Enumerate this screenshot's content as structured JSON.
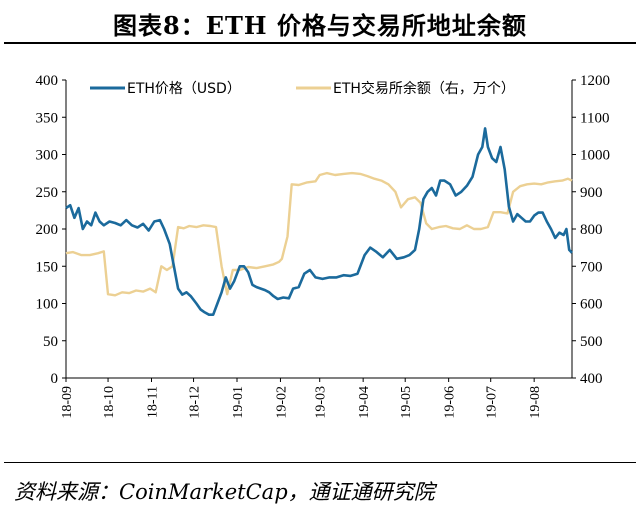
{
  "title": "图表8：ETH 价格与交易所地址余额",
  "source": "资料来源：CoinMarketCap，通证通研究院",
  "colors": {
    "price": "#1b6a9c",
    "balance": "#ecd093"
  },
  "chart_data": {
    "type": "line",
    "title": "图表8：ETH 价格与交易所地址余额",
    "x_ticks": [
      "18-09",
      "18-10",
      "18-11",
      "18-12",
      "19-01",
      "19-02",
      "19-03",
      "19-04",
      "19-05",
      "19-06",
      "19-07",
      "19-08"
    ],
    "x_range": [
      "2018-09-01",
      "2019-08-28"
    ],
    "y_left": {
      "ticks": [
        0,
        50,
        100,
        150,
        200,
        250,
        300,
        350,
        400
      ],
      "lim": [
        0,
        400
      ]
    },
    "y_right": {
      "ticks": [
        400,
        500,
        600,
        700,
        800,
        900,
        1000,
        1100,
        1200
      ],
      "lim": [
        400,
        1200
      ]
    },
    "legend_position": "top",
    "grid": false,
    "series": [
      {
        "name": "ETH价格（USD）",
        "axis": "left",
        "color": "#1b6a9c",
        "points": [
          [
            "2018-09-01",
            228
          ],
          [
            "2018-09-04",
            232
          ],
          [
            "2018-09-07",
            215
          ],
          [
            "2018-09-10",
            228
          ],
          [
            "2018-09-13",
            200
          ],
          [
            "2018-09-16",
            210
          ],
          [
            "2018-09-19",
            205
          ],
          [
            "2018-09-22",
            222
          ],
          [
            "2018-09-25",
            210
          ],
          [
            "2018-09-28",
            205
          ],
          [
            "2018-10-02",
            210
          ],
          [
            "2018-10-06",
            208
          ],
          [
            "2018-10-10",
            205
          ],
          [
            "2018-10-14",
            212
          ],
          [
            "2018-10-18",
            205
          ],
          [
            "2018-10-22",
            202
          ],
          [
            "2018-10-26",
            207
          ],
          [
            "2018-10-30",
            198
          ],
          [
            "2018-11-03",
            210
          ],
          [
            "2018-11-07",
            212
          ],
          [
            "2018-11-10",
            200
          ],
          [
            "2018-11-14",
            180
          ],
          [
            "2018-11-17",
            150
          ],
          [
            "2018-11-20",
            120
          ],
          [
            "2018-11-23",
            112
          ],
          [
            "2018-11-26",
            115
          ],
          [
            "2018-11-29",
            110
          ],
          [
            "2018-12-03",
            100
          ],
          [
            "2018-12-06",
            92
          ],
          [
            "2018-12-09",
            88
          ],
          [
            "2018-12-12",
            85
          ],
          [
            "2018-12-15",
            85
          ],
          [
            "2018-12-18",
            100
          ],
          [
            "2018-12-21",
            115
          ],
          [
            "2018-12-24",
            135
          ],
          [
            "2018-12-27",
            120
          ],
          [
            "2018-12-30",
            130
          ],
          [
            "2019-01-03",
            150
          ],
          [
            "2019-01-06",
            150
          ],
          [
            "2019-01-09",
            142
          ],
          [
            "2019-01-12",
            125
          ],
          [
            "2019-01-15",
            122
          ],
          [
            "2019-01-18",
            120
          ],
          [
            "2019-01-21",
            118
          ],
          [
            "2019-01-24",
            115
          ],
          [
            "2019-01-27",
            110
          ],
          [
            "2019-01-30",
            106
          ],
          [
            "2019-02-03",
            108
          ],
          [
            "2019-02-07",
            107
          ],
          [
            "2019-02-10",
            120
          ],
          [
            "2019-02-14",
            122
          ],
          [
            "2019-02-18",
            140
          ],
          [
            "2019-02-22",
            145
          ],
          [
            "2019-02-26",
            135
          ],
          [
            "2019-03-03",
            133
          ],
          [
            "2019-03-08",
            135
          ],
          [
            "2019-03-13",
            135
          ],
          [
            "2019-03-18",
            138
          ],
          [
            "2019-03-23",
            137
          ],
          [
            "2019-03-28",
            140
          ],
          [
            "2019-04-02",
            165
          ],
          [
            "2019-04-06",
            175
          ],
          [
            "2019-04-10",
            170
          ],
          [
            "2019-04-15",
            162
          ],
          [
            "2019-04-20",
            172
          ],
          [
            "2019-04-25",
            160
          ],
          [
            "2019-04-30",
            162
          ],
          [
            "2019-05-04",
            165
          ],
          [
            "2019-05-08",
            172
          ],
          [
            "2019-05-11",
            200
          ],
          [
            "2019-05-14",
            240
          ],
          [
            "2019-05-17",
            250
          ],
          [
            "2019-05-20",
            255
          ],
          [
            "2019-05-23",
            245
          ],
          [
            "2019-05-26",
            265
          ],
          [
            "2019-05-29",
            265
          ],
          [
            "2019-06-02",
            260
          ],
          [
            "2019-06-06",
            245
          ],
          [
            "2019-06-10",
            250
          ],
          [
            "2019-06-14",
            258
          ],
          [
            "2019-06-18",
            270
          ],
          [
            "2019-06-22",
            300
          ],
          [
            "2019-06-25",
            310
          ],
          [
            "2019-06-27",
            335
          ],
          [
            "2019-06-29",
            310
          ],
          [
            "2019-07-02",
            295
          ],
          [
            "2019-07-05",
            290
          ],
          [
            "2019-07-08",
            310
          ],
          [
            "2019-07-11",
            280
          ],
          [
            "2019-07-14",
            230
          ],
          [
            "2019-07-17",
            210
          ],
          [
            "2019-07-20",
            220
          ],
          [
            "2019-07-23",
            215
          ],
          [
            "2019-07-26",
            210
          ],
          [
            "2019-07-29",
            210
          ],
          [
            "2019-08-01",
            218
          ],
          [
            "2019-08-04",
            222
          ],
          [
            "2019-08-07",
            222
          ],
          [
            "2019-08-10",
            210
          ],
          [
            "2019-08-13",
            200
          ],
          [
            "2019-08-16",
            188
          ],
          [
            "2019-08-19",
            195
          ],
          [
            "2019-08-22",
            192
          ],
          [
            "2019-08-24",
            200
          ],
          [
            "2019-08-26",
            172
          ],
          [
            "2019-08-28",
            168
          ]
        ]
      },
      {
        "name": "ETH交易所余额（右，万个）",
        "axis": "right",
        "color": "#ecd093",
        "points": [
          [
            "2018-09-01",
            735
          ],
          [
            "2018-09-06",
            738
          ],
          [
            "2018-09-12",
            730
          ],
          [
            "2018-09-18",
            730
          ],
          [
            "2018-09-24",
            735
          ],
          [
            "2018-09-28",
            740
          ],
          [
            "2018-10-01",
            625
          ],
          [
            "2018-10-06",
            622
          ],
          [
            "2018-10-11",
            630
          ],
          [
            "2018-10-16",
            628
          ],
          [
            "2018-10-21",
            635
          ],
          [
            "2018-10-26",
            632
          ],
          [
            "2018-10-31",
            640
          ],
          [
            "2018-11-04",
            630
          ],
          [
            "2018-11-08",
            700
          ],
          [
            "2018-11-12",
            690
          ],
          [
            "2018-11-16",
            700
          ],
          [
            "2018-11-20",
            805
          ],
          [
            "2018-11-24",
            802
          ],
          [
            "2018-11-28",
            808
          ],
          [
            "2018-12-03",
            805
          ],
          [
            "2018-12-08",
            810
          ],
          [
            "2018-12-13",
            808
          ],
          [
            "2018-12-17",
            805
          ],
          [
            "2018-12-21",
            700
          ],
          [
            "2018-12-25",
            625
          ],
          [
            "2018-12-29",
            690
          ],
          [
            "2019-01-03",
            690
          ],
          [
            "2019-01-09",
            698
          ],
          [
            "2019-01-15",
            695
          ],
          [
            "2019-01-21",
            700
          ],
          [
            "2019-01-27",
            705
          ],
          [
            "2019-01-31",
            712
          ],
          [
            "2019-02-02",
            720
          ],
          [
            "2019-02-06",
            780
          ],
          [
            "2019-02-09",
            920
          ],
          [
            "2019-02-14",
            918
          ],
          [
            "2019-02-20",
            925
          ],
          [
            "2019-02-26",
            928
          ],
          [
            "2019-03-01",
            945
          ],
          [
            "2019-03-06",
            950
          ],
          [
            "2019-03-12",
            945
          ],
          [
            "2019-03-18",
            948
          ],
          [
            "2019-03-24",
            950
          ],
          [
            "2019-03-30",
            948
          ],
          [
            "2019-04-04",
            942
          ],
          [
            "2019-04-09",
            935
          ],
          [
            "2019-04-14",
            930
          ],
          [
            "2019-04-19",
            920
          ],
          [
            "2019-04-24",
            900
          ],
          [
            "2019-04-28",
            858
          ],
          [
            "2019-05-03",
            880
          ],
          [
            "2019-05-08",
            885
          ],
          [
            "2019-05-12",
            870
          ],
          [
            "2019-05-16",
            815
          ],
          [
            "2019-05-20",
            800
          ],
          [
            "2019-05-25",
            805
          ],
          [
            "2019-05-30",
            808
          ],
          [
            "2019-06-04",
            802
          ],
          [
            "2019-06-09",
            800
          ],
          [
            "2019-06-14",
            810
          ],
          [
            "2019-06-19",
            800
          ],
          [
            "2019-06-24",
            800
          ],
          [
            "2019-06-29",
            805
          ],
          [
            "2019-07-03",
            845
          ],
          [
            "2019-07-08",
            845
          ],
          [
            "2019-07-13",
            842
          ],
          [
            "2019-07-17",
            900
          ],
          [
            "2019-07-22",
            915
          ],
          [
            "2019-07-27",
            920
          ],
          [
            "2019-08-01",
            922
          ],
          [
            "2019-08-06",
            920
          ],
          [
            "2019-08-11",
            925
          ],
          [
            "2019-08-16",
            928
          ],
          [
            "2019-08-21",
            930
          ],
          [
            "2019-08-25",
            935
          ],
          [
            "2019-08-28",
            930
          ]
        ]
      }
    ]
  }
}
